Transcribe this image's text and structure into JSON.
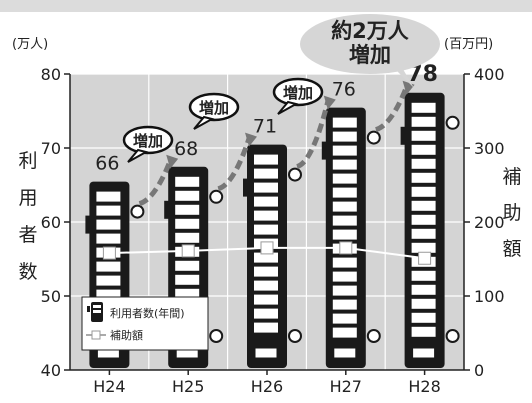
{
  "chart_data": {
    "type": "bar",
    "categories": [
      "H24",
      "H25",
      "H26",
      "H27",
      "H28"
    ],
    "series": [
      {
        "name": "利用者数(年間)",
        "type": "bar",
        "axis": "left",
        "values": [
          66,
          68,
          71,
          76,
          78
        ]
      },
      {
        "name": "補助額",
        "type": "line",
        "axis": "right",
        "values": [
          158,
          161,
          165,
          165,
          151
        ]
      }
    ],
    "y_left": {
      "unit": "(万人)",
      "label": "利用者数",
      "ylim": [
        40,
        80
      ],
      "ticks": [
        40,
        50,
        60,
        70,
        80
      ]
    },
    "y_right": {
      "unit": "(百万円)",
      "label": "補助額",
      "ylim": [
        0,
        400
      ],
      "ticks": [
        0,
        100,
        200,
        300,
        400
      ]
    },
    "data_labels": [
      "66",
      "68",
      "71",
      "76",
      "78"
    ],
    "annotations": [
      "増加",
      "増加",
      "増加",
      "約2万人",
      "増加"
    ],
    "grid": true,
    "legend": "bottom-left"
  },
  "colors": {
    "plot_bg": "#d4d4d4",
    "bar": "#1a1a1a",
    "line": "#ffffff",
    "arrow": "#777777",
    "top_band": "#dcdcdc"
  }
}
